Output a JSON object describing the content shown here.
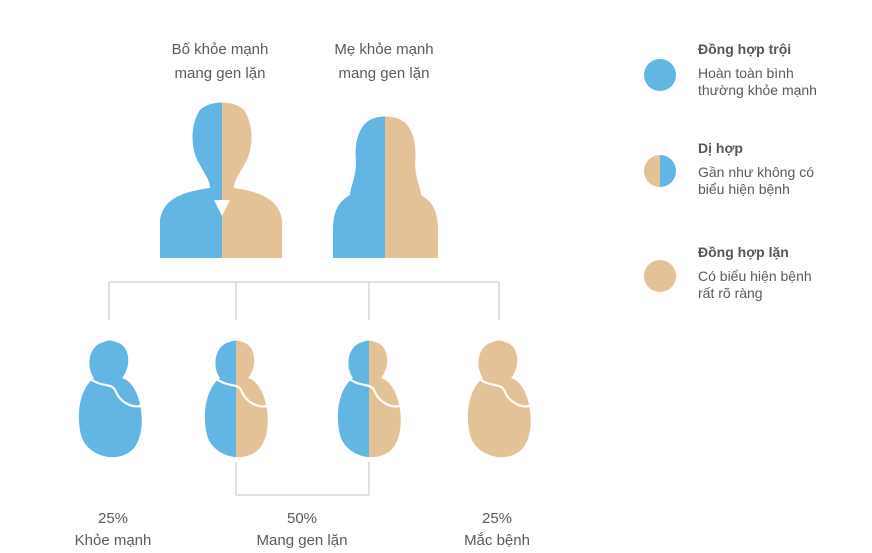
{
  "colors": {
    "dominant": "#63b5e3",
    "recessive": "#e4c297",
    "line": "#cfcfcf",
    "text": "#5a5a5a"
  },
  "parents": {
    "father": {
      "line1": "Bố khỏe mạnh",
      "line2": "mang gen lặn",
      "icon": "father-silhouette-icon"
    },
    "mother": {
      "line1": "Mẹ khỏe mạnh",
      "line2": "mang gen lặn",
      "icon": "mother-silhouette-icon"
    }
  },
  "children": [
    {
      "genotype": "homozygous-dominant",
      "icon": "baby-blue-icon"
    },
    {
      "genotype": "heterozygous",
      "icon": "baby-half-icon"
    },
    {
      "genotype": "heterozygous",
      "icon": "baby-half-icon"
    },
    {
      "genotype": "homozygous-recessive",
      "icon": "baby-tan-icon"
    }
  ],
  "outcomes": [
    {
      "percent": "25%",
      "label": "Khỏe mạnh"
    },
    {
      "percent": "50%",
      "label": "Mang gen lặn"
    },
    {
      "percent": "25%",
      "label": "Mắc bệnh"
    }
  ],
  "legend": [
    {
      "title": "Đồng hợp trội",
      "desc1": "Hoàn toàn bình",
      "desc2": "thường khỏe mạnh",
      "icon": "blue-circle-icon"
    },
    {
      "title": "Dị hợp",
      "desc1": "Gần như không có",
      "desc2": "biểu hiện bệnh",
      "icon": "half-circle-icon"
    },
    {
      "title": "Đồng hợp lặn",
      "desc1": "Có biểu hiện bệnh",
      "desc2": "rất rõ ràng",
      "icon": "tan-circle-icon"
    }
  ]
}
